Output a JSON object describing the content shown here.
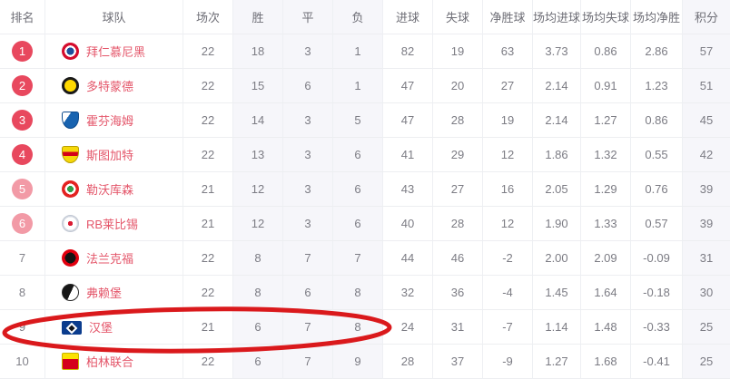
{
  "table": {
    "columns": [
      "排名",
      "球队",
      "场次",
      "胜",
      "平",
      "负",
      "进球",
      "失球",
      "净胜球",
      "场均进球",
      "场均失球",
      "场均净胜",
      "积分"
    ],
    "shaded_columns": [
      3,
      4,
      5,
      12
    ],
    "rows": [
      {
        "rank": "1",
        "rank_style": "strong",
        "team": "拜仁慕尼黑",
        "logo": "bayern-munich",
        "stats": [
          "22",
          "18",
          "3",
          "1",
          "82",
          "19",
          "63",
          "3.73",
          "0.86",
          "2.86",
          "57"
        ]
      },
      {
        "rank": "2",
        "rank_style": "strong",
        "team": "多特蒙德",
        "logo": "dortmund",
        "stats": [
          "22",
          "15",
          "6",
          "1",
          "47",
          "20",
          "27",
          "2.14",
          "0.91",
          "1.23",
          "51"
        ]
      },
      {
        "rank": "3",
        "rank_style": "strong",
        "team": "霍芬海姆",
        "logo": "hoffenheim",
        "stats": [
          "22",
          "14",
          "3",
          "5",
          "47",
          "28",
          "19",
          "2.14",
          "1.27",
          "0.86",
          "45"
        ]
      },
      {
        "rank": "4",
        "rank_style": "strong",
        "team": "斯图加特",
        "logo": "stuttgart",
        "stats": [
          "22",
          "13",
          "3",
          "6",
          "41",
          "29",
          "12",
          "1.86",
          "1.32",
          "0.55",
          "42"
        ]
      },
      {
        "rank": "5",
        "rank_style": "light",
        "team": "勒沃库森",
        "logo": "leverkusen",
        "stats": [
          "21",
          "12",
          "3",
          "6",
          "43",
          "27",
          "16",
          "2.05",
          "1.29",
          "0.76",
          "39"
        ]
      },
      {
        "rank": "6",
        "rank_style": "light",
        "team": "RB莱比锡",
        "logo": "rb-leipzig",
        "stats": [
          "21",
          "12",
          "3",
          "6",
          "40",
          "28",
          "12",
          "1.90",
          "1.33",
          "0.57",
          "39"
        ]
      },
      {
        "rank": "7",
        "rank_style": "plain",
        "team": "法兰克福",
        "logo": "frankfurt",
        "stats": [
          "22",
          "8",
          "7",
          "7",
          "44",
          "46",
          "-2",
          "2.00",
          "2.09",
          "-0.09",
          "31"
        ]
      },
      {
        "rank": "8",
        "rank_style": "plain",
        "team": "弗赖堡",
        "logo": "freiburg",
        "stats": [
          "22",
          "8",
          "6",
          "8",
          "32",
          "36",
          "-4",
          "1.45",
          "1.64",
          "-0.18",
          "30"
        ]
      },
      {
        "rank": "9",
        "rank_style": "plain",
        "team": "汉堡",
        "logo": "hamburg",
        "stats": [
          "21",
          "6",
          "7",
          "8",
          "24",
          "31",
          "-7",
          "1.14",
          "1.48",
          "-0.33",
          "25"
        ]
      },
      {
        "rank": "10",
        "rank_style": "plain",
        "team": "柏林联合",
        "logo": "union-berlin",
        "stats": [
          "22",
          "6",
          "7",
          "9",
          "28",
          "37",
          "-9",
          "1.27",
          "1.68",
          "-0.41",
          "25"
        ]
      }
    ]
  },
  "annotation": {
    "circled_row_rank": "9",
    "color": "#da191c"
  },
  "colors": {
    "rank_badge_strong": "#e8485e",
    "rank_badge_light": "#f29aa6",
    "team_name": "#e4566a",
    "shaded_column_bg": "#f6f6fa"
  }
}
